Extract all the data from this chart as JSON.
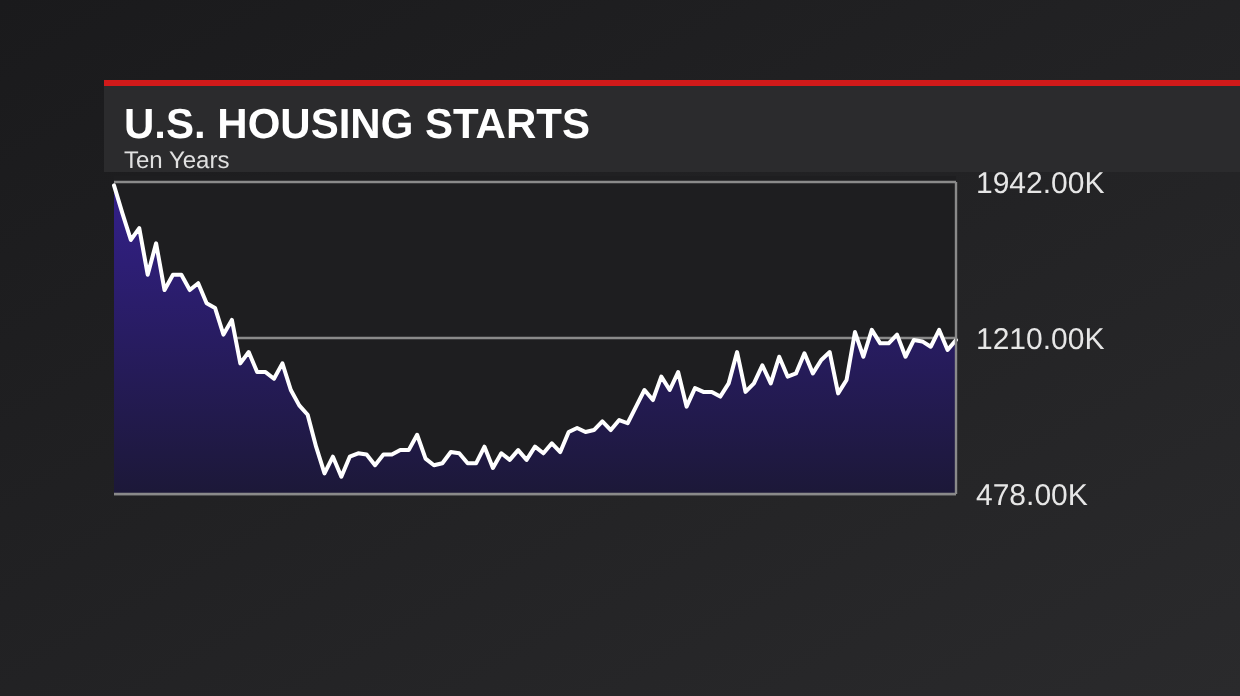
{
  "chart_data": {
    "type": "area",
    "title": "U.S. HOUSING STARTS",
    "subtitle": "Ten Years",
    "categories": [
      null,
      null,
      null,
      null,
      null,
      null,
      null,
      null,
      null,
      null,
      null,
      null,
      null,
      null,
      null,
      null,
      null,
      null,
      null,
      null,
      null,
      null,
      null,
      null,
      null,
      null,
      null,
      null,
      null,
      null,
      null,
      null,
      null,
      null,
      null,
      null,
      null,
      null,
      null,
      null,
      null,
      null,
      null,
      null,
      null,
      null,
      null,
      null,
      null,
      null,
      null,
      null,
      null,
      null,
      null,
      null,
      null,
      null,
      null,
      null,
      null,
      null,
      null,
      null,
      null,
      null,
      null,
      null,
      null,
      null,
      null,
      null,
      null,
      null,
      null,
      null,
      null,
      null,
      null,
      null,
      null,
      null,
      null,
      null,
      null,
      null,
      null,
      null,
      null,
      null,
      null,
      null,
      null,
      null,
      null,
      null,
      null,
      null,
      null,
      null,
      null
    ],
    "series": [
      {
        "color": "#ffffff",
        "values": [
          1926,
          1795,
          1670,
          1726,
          1507,
          1654,
          1435,
          1507,
          1507,
          1435,
          1467,
          1373,
          1351,
          1226,
          1295,
          1091,
          1144,
          1050,
          1050,
          1019,
          1091,
          966,
          894,
          850,
          700,
          575,
          653,
          559,
          653,
          669,
          663,
          613,
          663,
          663,
          684,
          684,
          756,
          644,
          613,
          622,
          675,
          669,
          622,
          622,
          700,
          600,
          669,
          638,
          684,
          638,
          700,
          669,
          716,
          675,
          769,
          788,
          769,
          778,
          819,
          778,
          825,
          810,
          888,
          966,
          919,
          1029,
          966,
          1050,
          888,
          975,
          957,
          957,
          935,
          997,
          1144,
          957,
          997,
          1082,
          997,
          1122,
          1029,
          1044,
          1138,
          1044,
          1107,
          1144,
          950,
          1013,
          1238,
          1122,
          1248,
          1185,
          1185,
          1226,
          1122,
          1201,
          1194,
          1169,
          1248,
          1154,
          1201
        ]
      }
    ],
    "ylim": [
      478,
      1942
    ],
    "yticks": [
      {
        "value": 478,
        "label": "478.00K"
      },
      {
        "value": 1210,
        "label": "1210.00K"
      },
      {
        "value": 1942,
        "label": "1942.00K"
      }
    ],
    "grid": "y"
  }
}
